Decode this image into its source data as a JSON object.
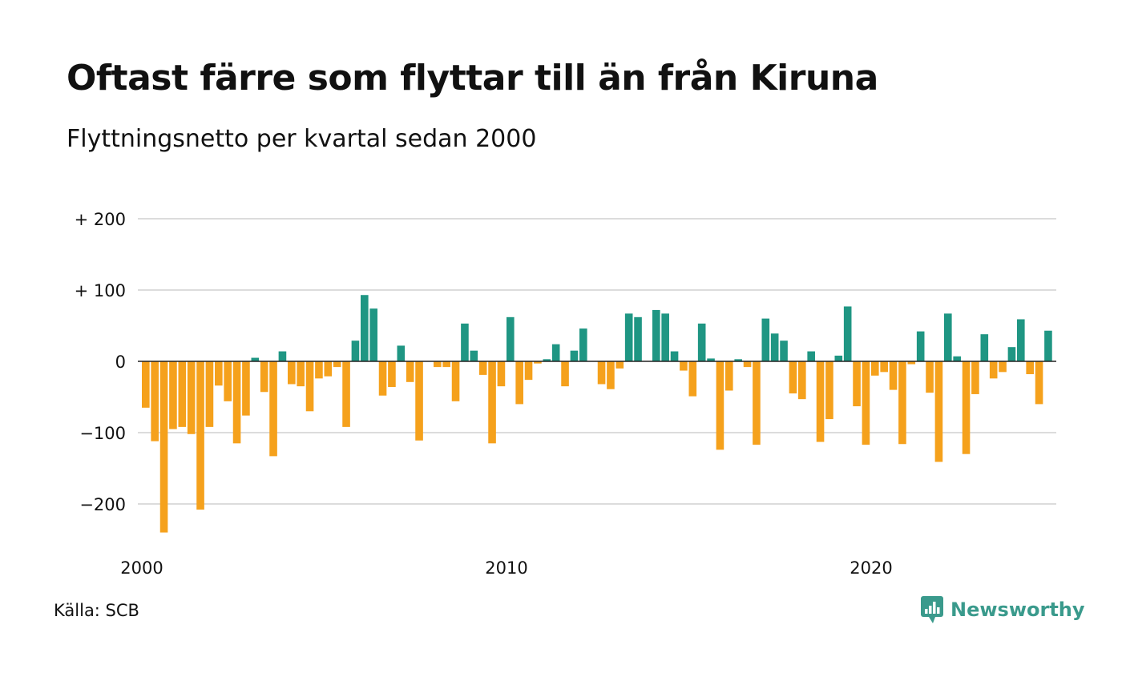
{
  "title": "Oftast färre som flyttar till än från Kiruna",
  "subtitle": "Flyttningsnetto per kvartal sedan 2000",
  "source": "Källa: SCB",
  "brand": "Newsworthy",
  "colors": {
    "positive": "#1f9683",
    "negative": "#f5a11c",
    "grid": "#dcdcdc",
    "zero_line": "#222222",
    "brand": "#3a9a8c"
  },
  "chart_data": {
    "type": "bar",
    "title": "Oftast färre som flyttar till än från Kiruna",
    "subtitle": "Flyttningsnetto per kvartal sedan 2000",
    "ylim": [
      -250,
      200
    ],
    "y_ticks": [
      {
        "value": 200,
        "label": "+ 200"
      },
      {
        "value": 100,
        "label": "+ 100"
      },
      {
        "value": 0,
        "label": "0"
      },
      {
        "value": -100,
        "label": "−100"
      },
      {
        "value": -200,
        "label": "−200"
      }
    ],
    "x_ticks": [
      {
        "value": "2000",
        "label": "2000"
      },
      {
        "value": "2010",
        "label": "2010"
      },
      {
        "value": "2020",
        "label": "2020"
      }
    ],
    "start_year": 2000,
    "grid": true,
    "values": [
      -65,
      -112,
      -240,
      -95,
      -92,
      -102,
      -208,
      -92,
      -34,
      -56,
      -115,
      -76,
      5,
      -43,
      -133,
      14,
      -32,
      -35,
      -70,
      -24,
      -21,
      -8,
      -92,
      29,
      93,
      74,
      -48,
      -36,
      22,
      -29,
      -111,
      0,
      -8,
      -8,
      -56,
      53,
      15,
      -19,
      -115,
      -35,
      62,
      -60,
      -26,
      -3,
      3,
      24,
      -35,
      15,
      46,
      0,
      -32,
      -39,
      -10,
      67,
      62,
      0,
      72,
      67,
      14,
      -13,
      -49,
      53,
      4,
      -124,
      -41,
      3,
      -8,
      -117,
      60,
      39,
      29,
      -45,
      -53,
      14,
      -113,
      -81,
      8,
      77,
      -63,
      -117,
      -20,
      -15,
      -40,
      -116,
      -4,
      42,
      -44,
      -141,
      67,
      7,
      -130,
      -46,
      38,
      -24,
      -15,
      20,
      59,
      -18,
      -60,
      43
    ]
  }
}
